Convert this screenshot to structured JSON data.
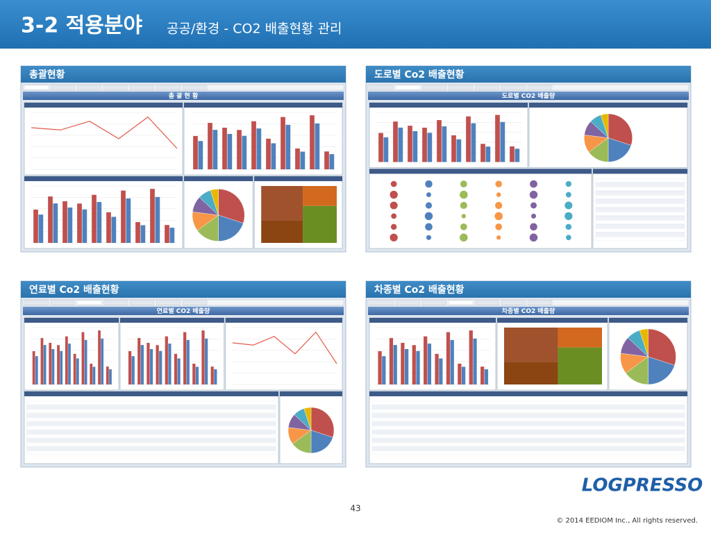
{
  "header": {
    "title": "3-2 적용분야",
    "subtitle": "공공/환경 - CO2 배출현황 관리"
  },
  "panels": [
    {
      "title": "총괄현황",
      "screen_title": "총 괄 현 황"
    },
    {
      "title": "도로별 Co2 배출현황",
      "screen_title": "도로별 CO2 배출량"
    },
    {
      "title": "연료별 Co2 배출현황",
      "screen_title": "연료별 CO2 배출량"
    },
    {
      "title": "차종별 Co2 배출현황",
      "screen_title": "차종별 CO2 배출량"
    }
  ],
  "footer": {
    "page": "43",
    "logo": "LOGPRESSO",
    "copyright": "© 2014 EEDIOM Inc., All rights reserved."
  }
}
